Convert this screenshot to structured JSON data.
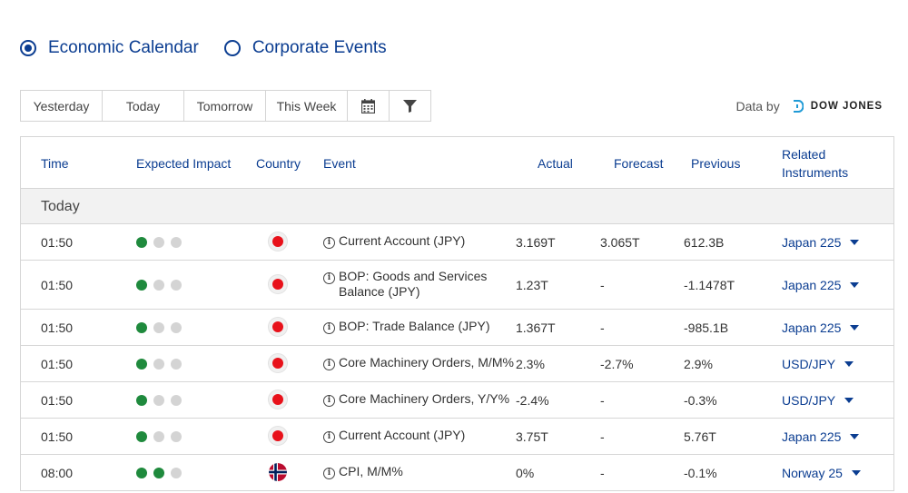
{
  "filters": {
    "economic_calendar": "Economic Calendar",
    "corporate_events": "Corporate Events"
  },
  "toolbar": {
    "yesterday": "Yesterday",
    "today": "Today",
    "tomorrow": "Tomorrow",
    "this_week": "This Week",
    "calendar_icon": "calendar-icon",
    "filter_icon": "filter-icon"
  },
  "provider": {
    "label": "Data by",
    "name": "DOW JONES"
  },
  "table": {
    "headers": {
      "time": "Time",
      "impact": "Expected Impact",
      "country": "Country",
      "event": "Event",
      "actual": "Actual",
      "forecast": "Forecast",
      "previous": "Previous",
      "related_1": "Related",
      "related_2": "Instruments"
    },
    "section": "Today",
    "rows": [
      {
        "time": "01:50",
        "impact": 1,
        "country": "jp",
        "event": "Current Account (JPY)",
        "event_2": "",
        "actual": "3.169T",
        "forecast": "3.065T",
        "previous": "612.3B",
        "instrument": "Japan 225"
      },
      {
        "time": "01:50",
        "impact": 1,
        "country": "jp",
        "event": "BOP: Goods and Services",
        "event_2": "Balance (JPY)",
        "actual": "1.23T",
        "forecast": "-",
        "previous": "-1.1478T",
        "instrument": "Japan 225"
      },
      {
        "time": "01:50",
        "impact": 1,
        "country": "jp",
        "event": "BOP: Trade Balance (JPY)",
        "event_2": "",
        "actual": "1.367T",
        "forecast": "-",
        "previous": "-985.1B",
        "instrument": "Japan 225"
      },
      {
        "time": "01:50",
        "impact": 1,
        "country": "jp",
        "event": "Core Machinery Orders, M/M%",
        "event_2": "",
        "actual": "2.3%",
        "forecast": "-2.7%",
        "previous": "2.9%",
        "instrument": "USD/JPY"
      },
      {
        "time": "01:50",
        "impact": 1,
        "country": "jp",
        "event": "Core Machinery Orders, Y/Y%",
        "event_2": "",
        "actual": "-2.4%",
        "forecast": "-",
        "previous": "-0.3%",
        "instrument": "USD/JPY"
      },
      {
        "time": "01:50",
        "impact": 1,
        "country": "jp",
        "event": "Current Account (JPY)",
        "event_2": "",
        "actual": "3.75T",
        "forecast": "-",
        "previous": "5.76T",
        "instrument": "Japan 225"
      },
      {
        "time": "08:00",
        "impact": 2,
        "country": "no",
        "event": "CPI, M/M%",
        "event_2": "",
        "actual": "0%",
        "forecast": "-",
        "previous": "-0.1%",
        "instrument": "Norway 25"
      }
    ]
  }
}
